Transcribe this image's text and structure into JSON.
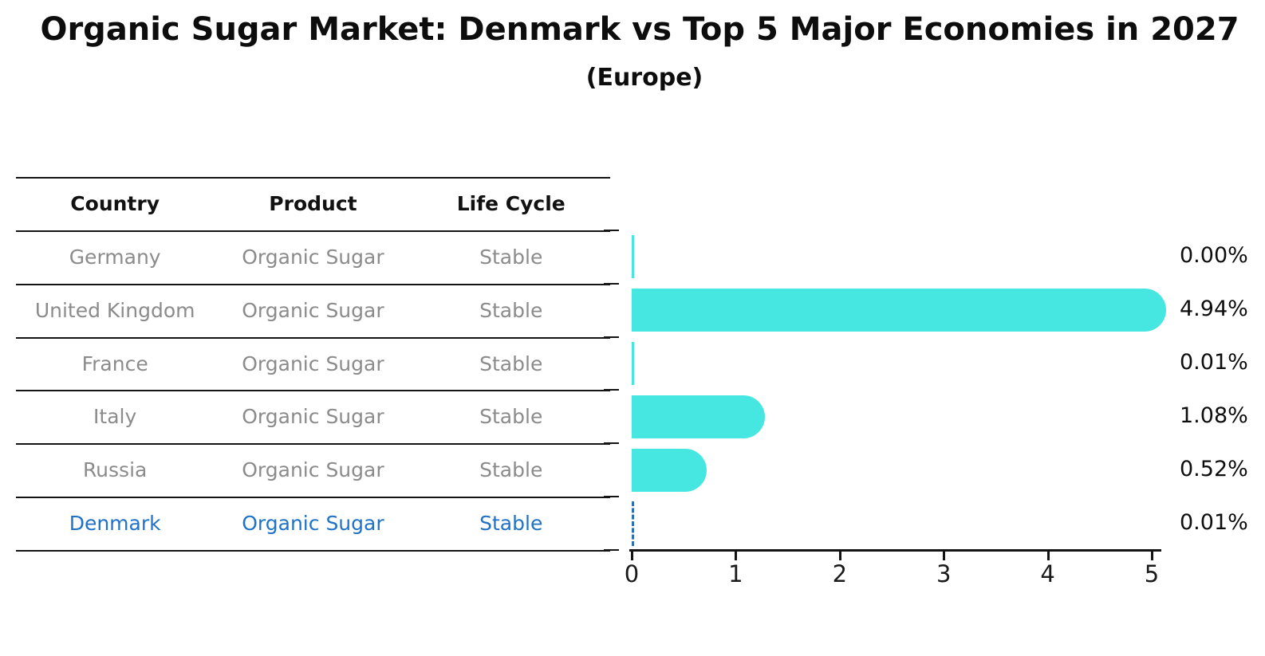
{
  "header": {
    "title": "Organic Sugar Market: Denmark vs Top 5 Major Economies in 2027",
    "subtitle": "(Europe)"
  },
  "table": {
    "columns": [
      "Country",
      "Product",
      "Life Cycle"
    ],
    "rows": [
      {
        "country": "Germany",
        "product": "Organic Sugar",
        "life_cycle": "Stable",
        "highlight": false
      },
      {
        "country": "United Kingdom",
        "product": "Organic Sugar",
        "life_cycle": "Stable",
        "highlight": false
      },
      {
        "country": "France",
        "product": "Organic Sugar",
        "life_cycle": "Stable",
        "highlight": false
      },
      {
        "country": "Italy",
        "product": "Organic Sugar",
        "life_cycle": "Stable",
        "highlight": false
      },
      {
        "country": "Russia",
        "product": "Organic Sugar",
        "life_cycle": "Stable",
        "highlight": true
      }
    ],
    "highlight_row": {
      "country": "Denmark",
      "product": "Organic Sugar",
      "life_cycle": "Stable"
    }
  },
  "chart_data": {
    "type": "bar",
    "orientation": "horizontal",
    "title": "Organic Sugar Market: Denmark vs Top 5 Major Economies in 2027",
    "subtitle": "(Europe)",
    "categories": [
      "Germany",
      "United Kingdom",
      "France",
      "Italy",
      "Russia",
      "Denmark"
    ],
    "values": [
      0.0,
      4.94,
      0.01,
      1.08,
      0.52,
      0.01
    ],
    "value_labels": [
      "0.00%",
      "4.94%",
      "0.01%",
      "1.08%",
      "0.52%",
      "0.01%"
    ],
    "xlabel": "",
    "ylabel": "",
    "xlim": [
      0,
      5.1
    ],
    "xticks": [
      0,
      1,
      2,
      3,
      4,
      5
    ],
    "xtick_labels": [
      "0",
      "1",
      "2",
      "3",
      "4",
      "5"
    ],
    "grid": false,
    "legend": false,
    "highlight_category": "Denmark",
    "highlight_style": "dashed-outline",
    "bar_color": "#47e7e1",
    "highlight_color": "#1f72c8"
  },
  "colors": {
    "bar": "#47e7e1",
    "highlight_text": "#1f72c8",
    "table_text": "#8b8b8b",
    "header_text": "#111111",
    "axis": "#141414"
  }
}
